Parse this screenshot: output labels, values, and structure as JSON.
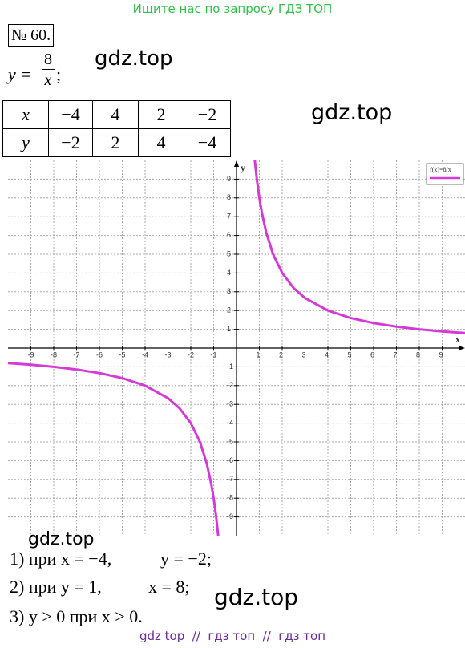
{
  "header": {
    "text": "Ищите нас по запросу ГДЗ ТОП"
  },
  "problem": {
    "number": "№ 60.",
    "lhs": "y =",
    "numerator": "8",
    "denominator": "x",
    "end": ";"
  },
  "watermarks": [
    "gdz.top",
    "gdz.top",
    "gdz.top",
    "gdz.top"
  ],
  "table": {
    "rows": [
      [
        "x",
        "−4",
        "4",
        "2",
        "−2"
      ],
      [
        "y",
        "−2",
        "2",
        "4",
        "−4"
      ]
    ]
  },
  "chart_data": {
    "type": "line",
    "x_label": "x",
    "y_label": "y",
    "x": [
      -10,
      -9,
      -8,
      -7,
      -6,
      -5,
      -4,
      -3,
      -2.5,
      -2,
      -1.6,
      -1.3,
      -1.1,
      -1,
      -0.9,
      -0.8,
      null,
      0.8,
      0.9,
      1,
      1.1,
      1.3,
      1.6,
      2,
      2.5,
      3,
      4,
      5,
      6,
      7,
      8,
      9,
      10
    ],
    "series": [
      {
        "name": "f(x)=8/x",
        "color": "#d63ad6",
        "values": [
          -0.8,
          -0.889,
          -1,
          -1.143,
          -1.333,
          -1.6,
          -2,
          -2.667,
          -3.2,
          -4,
          -5,
          -6.154,
          -7.273,
          -8,
          -8.889,
          -10,
          null,
          10,
          8.889,
          8,
          7.273,
          6.154,
          5,
          4,
          3.2,
          2.667,
          2,
          1.6,
          1.333,
          1.143,
          1,
          0.889,
          0.8
        ]
      }
    ],
    "xlim": [
      -10,
      10
    ],
    "ylim": [
      -10,
      10
    ],
    "xticks": [
      -9,
      -8,
      -7,
      -6,
      -5,
      -4,
      -3,
      -2,
      -1,
      1,
      2,
      3,
      4,
      5,
      6,
      7,
      8,
      9
    ],
    "yticks": [
      -9,
      -8,
      -7,
      -6,
      -5,
      -4,
      -3,
      -2,
      -1,
      1,
      2,
      3,
      4,
      5,
      6,
      7,
      8,
      9
    ],
    "grid": true,
    "legend": "upper right"
  },
  "answers": [
    [
      "1) при x = −4,",
      "y = −2;"
    ],
    [
      "2) при y = 1,",
      "x = 8;"
    ],
    [
      "3) y > 0 при x > 0."
    ]
  ],
  "footer": {
    "text": "gdz top  //  гдз топ  //  гдз топ"
  }
}
